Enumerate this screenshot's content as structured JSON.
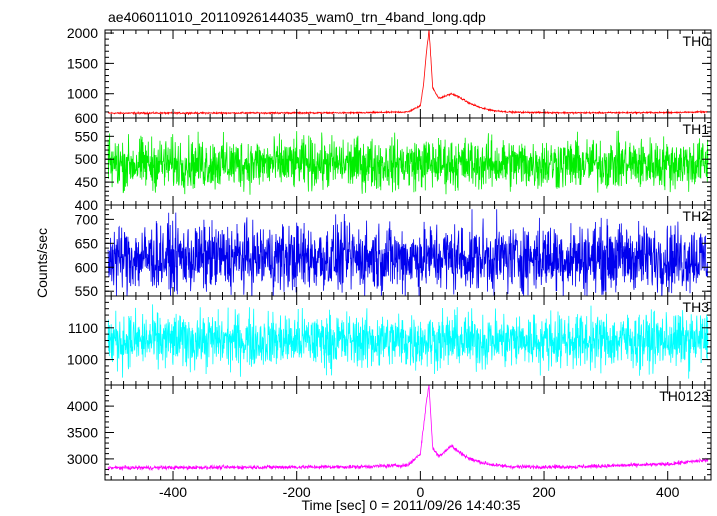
{
  "chart_data": {
    "type": "line",
    "title": "ae406011010_20110926144035_wam0_trn_4band_long.qdp",
    "xlabel": "Time [sec] 0 = 2011/09/26 14:40:35",
    "ylabel": "Counts/sec",
    "xlim": [
      -510,
      470
    ],
    "xticks": [
      -400,
      -200,
      0,
      200,
      400
    ],
    "grid": false,
    "series": [
      {
        "name": "TH0",
        "color": "#ff0000",
        "ylim": [
          600,
          2050
        ],
        "yticks": [
          600,
          1000,
          1500,
          2000
        ],
        "baseline": 680,
        "noise": 12,
        "x": [
          -505,
          -100,
          -20,
          0,
          5,
          10,
          14,
          20,
          30,
          40,
          50,
          60,
          80,
          100,
          120,
          150,
          250,
          400,
          465
        ],
        "values": [
          680,
          685,
          700,
          800,
          1150,
          1700,
          2050,
          1100,
          920,
          960,
          1000,
          960,
          840,
          760,
          720,
          695,
          685,
          690,
          700
        ]
      },
      {
        "name": "TH1",
        "color": "#00ee00",
        "ylim": [
          400,
          590
        ],
        "yticks": [
          400,
          450,
          500,
          550
        ],
        "baseline": 490,
        "noise": 55,
        "x": [
          -505,
          465
        ],
        "values": [
          490,
          490
        ]
      },
      {
        "name": "TH2",
        "color": "#0000ee",
        "ylim": [
          540,
          730
        ],
        "yticks": [
          550,
          600,
          650,
          700
        ],
        "baseline": 620,
        "noise": 70,
        "x": [
          -505,
          465
        ],
        "values": [
          620,
          620
        ]
      },
      {
        "name": "TH3",
        "color": "#00ffff",
        "ylim": [
          920,
          1200
        ],
        "yticks": [
          1000,
          1100
        ],
        "baseline": 1060,
        "noise": 85,
        "x": [
          -505,
          465
        ],
        "values": [
          1060,
          1060
        ]
      },
      {
        "name": "TH0123",
        "color": "#ff00ff",
        "ylim": [
          2600,
          4400
        ],
        "yticks": [
          3000,
          3500,
          4000
        ],
        "baseline": 2830,
        "noise": 35,
        "x": [
          -505,
          -100,
          -20,
          0,
          5,
          10,
          14,
          20,
          30,
          40,
          50,
          60,
          80,
          100,
          120,
          150,
          250,
          400,
          465
        ],
        "values": [
          2830,
          2850,
          2880,
          3100,
          3600,
          4100,
          4400,
          3200,
          3050,
          3150,
          3250,
          3150,
          3000,
          2930,
          2880,
          2850,
          2850,
          2900,
          2980
        ]
      }
    ]
  }
}
